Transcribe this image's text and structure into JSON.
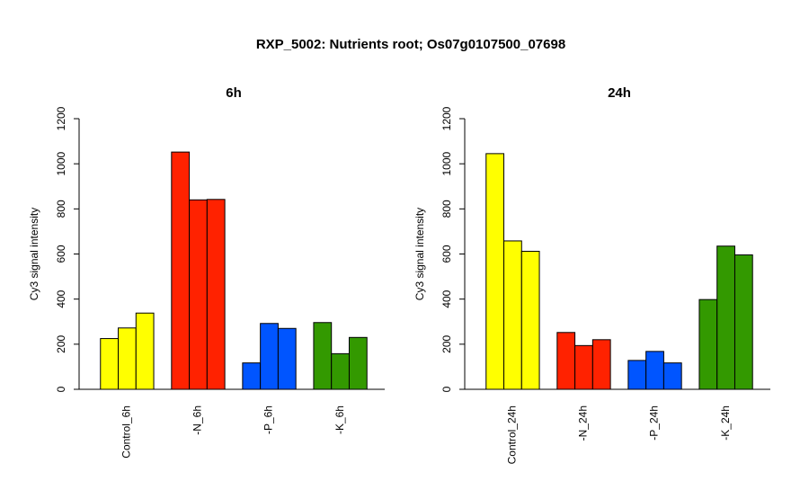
{
  "figure": {
    "title": "RXP_5002: Nutrients root; Os07g0107500_07698"
  },
  "chart_data": [
    {
      "type": "bar",
      "title": "6h",
      "ylabel": "Cy3 signal intensity",
      "ylim": [
        0,
        1200
      ],
      "yticks": [
        0,
        200,
        400,
        600,
        800,
        1000,
        1200
      ],
      "categories": [
        "Control_6h",
        "-N_6h",
        "-P_6h",
        "-K_6h"
      ],
      "colors": [
        "#ffff00",
        "#ff2200",
        "#0055ff",
        "#339900"
      ],
      "groups": [
        {
          "category": "Control_6h",
          "values": [
            225,
            272,
            338
          ]
        },
        {
          "category": "-N_6h",
          "values": [
            1052,
            840,
            842
          ]
        },
        {
          "category": "-P_6h",
          "values": [
            117,
            292,
            270
          ]
        },
        {
          "category": "-K_6h",
          "values": [
            296,
            158,
            230
          ]
        }
      ]
    },
    {
      "type": "bar",
      "title": "24h",
      "ylabel": "Cy3 signal intensity",
      "ylim": [
        0,
        1200
      ],
      "yticks": [
        0,
        200,
        400,
        600,
        800,
        1000,
        1200
      ],
      "categories": [
        "Control_24h",
        "-N_24h",
        "-P_24h",
        "-K_24h"
      ],
      "colors": [
        "#ffff00",
        "#ff2200",
        "#0055ff",
        "#339900"
      ],
      "groups": [
        {
          "category": "Control_24h",
          "values": [
            1045,
            658,
            612
          ]
        },
        {
          "category": "-N_24h",
          "values": [
            252,
            194,
            220
          ]
        },
        {
          "category": "-P_24h",
          "values": [
            128,
            168,
            117
          ]
        },
        {
          "category": "-K_24h",
          "values": [
            398,
            635,
            596
          ]
        }
      ]
    }
  ]
}
